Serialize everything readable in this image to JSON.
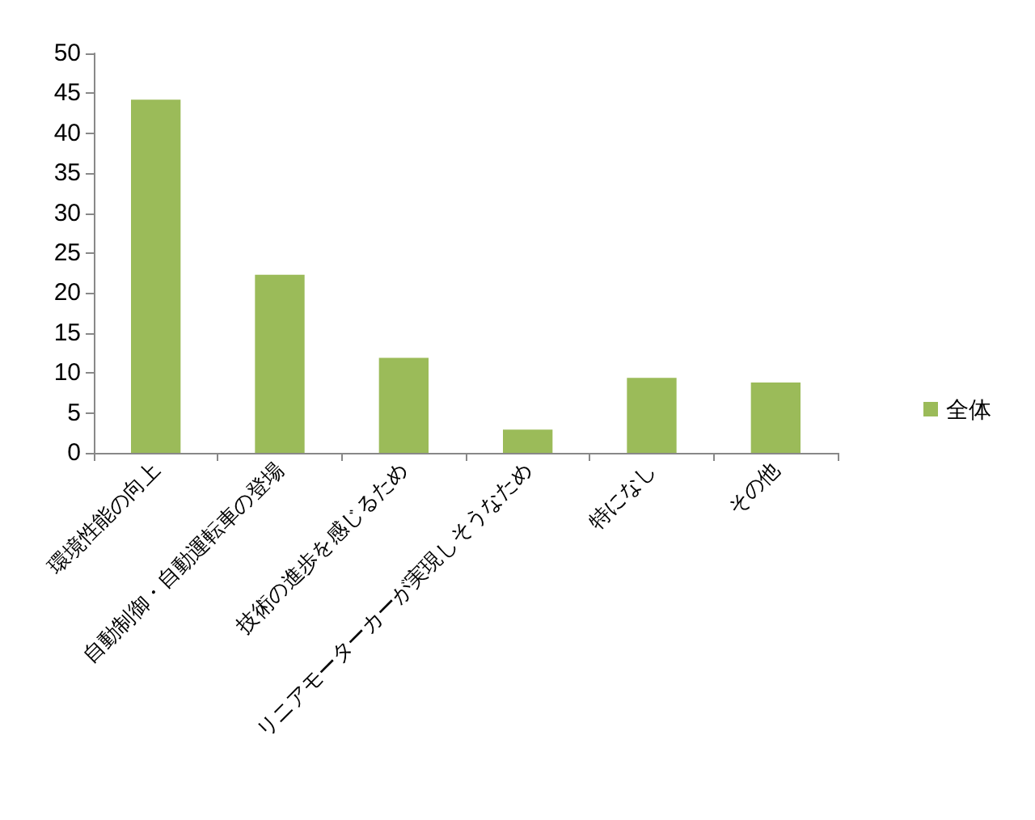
{
  "chart_data": {
    "type": "bar",
    "categories": [
      "環境性能の向上",
      "自動制御・自動運転車の登場",
      "技術の進歩を感じるため",
      "リニアモーターカーが実現しそうなため",
      "特になし",
      "その他"
    ],
    "series": [
      {
        "name": "全体",
        "color": "#9bbb59",
        "values": [
          44.2,
          22.3,
          11.9,
          2.9,
          9.4,
          8.8
        ]
      }
    ],
    "ylim": [
      0,
      50
    ],
    "yticks": [
      0,
      5,
      10,
      15,
      20,
      25,
      30,
      35,
      40,
      45,
      50
    ],
    "grid": false,
    "legend": "right"
  }
}
